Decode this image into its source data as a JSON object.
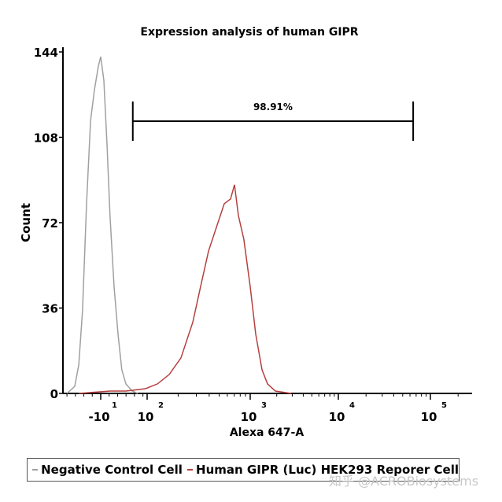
{
  "chart_data": {
    "type": "line",
    "title": "Expression analysis of human GIPR",
    "xlabel": "Alexa 647-A",
    "ylabel": "Count",
    "ylim": [
      0,
      144
    ],
    "yticks": [
      0,
      36,
      72,
      108,
      144
    ],
    "xticks": [
      {
        "value": -10,
        "base": "-10",
        "exp": "1"
      },
      {
        "value": 100,
        "base": "10",
        "exp": "2"
      },
      {
        "value": 1000,
        "base": "10",
        "exp": "3"
      },
      {
        "value": 10000,
        "base": "10",
        "exp": "4"
      },
      {
        "value": 100000,
        "base": "10",
        "exp": "5"
      }
    ],
    "x_scale": "biexponential",
    "gate": {
      "label": "98.91%",
      "x_start": 66,
      "x_end": 65000
    },
    "series": [
      {
        "name": "Negative Control Cell",
        "color": "#a0a0a0",
        "x": [
          -90,
          -71.5,
          -62,
          -53,
          -43.6,
          -34,
          -25,
          -15.6,
          -10,
          -2.5,
          5,
          12,
          21.7,
          31,
          40,
          49.7,
          64.6,
          77.6
        ],
        "y": [
          0,
          3,
          12,
          35,
          80,
          115,
          128,
          138,
          142,
          132,
          105,
          75,
          45,
          25,
          10,
          4,
          1,
          0
        ]
      },
      {
        "name": "Human GIPR (Luc) HEK293 Reporer Cell",
        "color": "#b5403f",
        "x": [
          -62,
          12.4,
          49.6,
          96,
          126,
          164,
          213,
          277,
          330,
          394,
          470,
          560,
          644,
          703,
          768,
          868,
          1000,
          1155,
          1361,
          1571,
          1930,
          2914
        ],
        "y": [
          0,
          1,
          1,
          2,
          4,
          8,
          15,
          30,
          45,
          60,
          70,
          80,
          82,
          88,
          75,
          65,
          45,
          25,
          10,
          4,
          1,
          0
        ]
      }
    ]
  },
  "watermark": "知乎 @ACROBiosystems"
}
